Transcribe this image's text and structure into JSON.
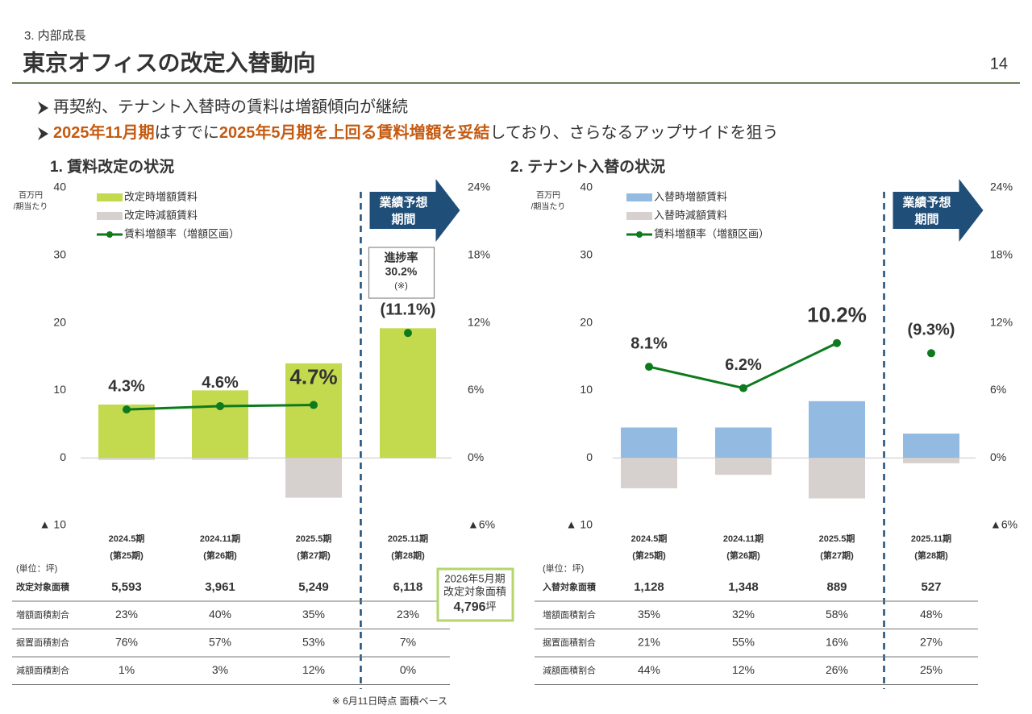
{
  "header": {
    "section": "3. 内部成長",
    "title": "東京オフィスの改定入替動向",
    "page": "14"
  },
  "bullets": [
    [
      {
        "text": "再契約、テナント入替時の賃料は増額傾向が継続",
        "em": false
      }
    ],
    [
      {
        "text": "2025年11月期",
        "em": true
      },
      {
        "text": "はすでに",
        "em": false
      },
      {
        "text": "2025年5月期を上回る賃料増額を妥結",
        "em": true
      },
      {
        "text": "しており、さらなるアップサイドを狙う",
        "em": false
      }
    ]
  ],
  "chart_data": [
    {
      "type": "bar",
      "title": "1. 賃料改定の状況",
      "y_unit_labels": [
        "百万円",
        "/期当たり"
      ],
      "categories": [
        "2024.5期",
        "2024.11期",
        "2025.5期",
        "2025.11期"
      ],
      "category_sublabels": [
        "(第25期)",
        "(第26期)",
        "(第27期)",
        "(第28期)"
      ],
      "ylim": [
        -10,
        40
      ],
      "yticks": [
        {
          "value": -10,
          "label": "▲ 10"
        },
        0,
        10,
        20,
        30,
        40
      ],
      "y2lim": [
        -6,
        24
      ],
      "y2ticks": [
        {
          "value": -6,
          "label": "▲6%"
        },
        {
          "value": 0,
          "label": "0%"
        },
        {
          "value": 6,
          "label": "6%"
        },
        {
          "value": 12,
          "label": "12%"
        },
        {
          "value": 18,
          "label": "18%"
        },
        {
          "value": 24,
          "label": "24%"
        }
      ],
      "series": [
        {
          "name": "改定時増額賃料",
          "type": "bar",
          "color": "#c3d94e",
          "values": [
            7.9,
            10.0,
            14.0,
            19.2
          ]
        },
        {
          "name": "改定時減額賃料",
          "type": "bar",
          "color": "#d6d1ce",
          "values": [
            -0.3,
            -0.3,
            -5.9,
            null
          ]
        },
        {
          "name": "賃料増額率（増額区画）",
          "type": "line",
          "axis": "y2",
          "color": "#0e7a1e",
          "values": [
            4.3,
            4.6,
            4.7,
            11.1
          ],
          "value_labels": [
            "4.3%",
            "4.6%",
            "4.7%",
            "(11.1%)"
          ],
          "value_label_colors": [
            "#595959",
            "#595959",
            "#c55a11",
            "#1f4e79"
          ]
        }
      ],
      "forecast_index": 3,
      "forecast_label": [
        "業績予想",
        "期間"
      ],
      "progress_note": [
        "進捗率",
        "30.2%",
        "(※)"
      ]
    },
    {
      "type": "bar",
      "title": "2. テナント入替の状況",
      "y_unit_labels": [
        "百万円",
        "/期当たり"
      ],
      "categories": [
        "2024.5期",
        "2024.11期",
        "2025.5期",
        "2025.11期"
      ],
      "category_sublabels": [
        "(第25期)",
        "(第26期)",
        "(第27期)",
        "(第28期)"
      ],
      "ylim": [
        -10,
        40
      ],
      "yticks": [
        {
          "value": -10,
          "label": "▲ 10"
        },
        0,
        10,
        20,
        30,
        40
      ],
      "y2lim": [
        -6,
        24
      ],
      "y2ticks": [
        {
          "value": -6,
          "label": "▲6%"
        },
        {
          "value": 0,
          "label": "0%"
        },
        {
          "value": 6,
          "label": "6%"
        },
        {
          "value": 12,
          "label": "12%"
        },
        {
          "value": 18,
          "label": "18%"
        },
        {
          "value": 24,
          "label": "24%"
        }
      ],
      "series": [
        {
          "name": "入替時増額賃料",
          "type": "bar",
          "color": "#93bbe2",
          "values": [
            4.5,
            4.5,
            8.4,
            3.6
          ]
        },
        {
          "name": "入替時減額賃料",
          "type": "bar",
          "color": "#d6d1ce",
          "values": [
            -4.5,
            -2.5,
            -6.0,
            -0.8
          ]
        },
        {
          "name": "賃料増額率（増額区画）",
          "type": "line",
          "axis": "y2",
          "color": "#0e7a1e",
          "values": [
            8.1,
            6.2,
            10.2,
            9.3
          ],
          "value_labels": [
            "8.1%",
            "6.2%",
            "10.2%",
            "(9.3%)"
          ],
          "value_label_colors": [
            "#595959",
            "#595959",
            "#c55a11",
            "#1f4e79"
          ]
        }
      ],
      "forecast_index": 3,
      "forecast_label": [
        "業績予想",
        "期間"
      ]
    }
  ],
  "tables": [
    {
      "unit": "(単位：坪)",
      "rows": [
        {
          "label": "改定対象面積",
          "values": [
            "5,593",
            "3,961",
            "5,249",
            "6,118"
          ]
        },
        {
          "label": "増額面積割合",
          "values": [
            "23%",
            "40%",
            "35%",
            "23%"
          ]
        },
        {
          "label": "据置面積割合",
          "values": [
            "76%",
            "57%",
            "53%",
            "7%"
          ]
        },
        {
          "label": "減額面積割合",
          "values": [
            "1%",
            "3%",
            "12%",
            "0%"
          ]
        }
      ]
    },
    {
      "unit": "(単位：坪)",
      "rows": [
        {
          "label": "入替対象面積",
          "values": [
            "1,128",
            "1,348",
            "889",
            "527"
          ]
        },
        {
          "label": "増額面積割合",
          "values": [
            "35%",
            "32%",
            "58%",
            "48%"
          ]
        },
        {
          "label": "据置面積割合",
          "values": [
            "21%",
            "55%",
            "16%",
            "27%"
          ]
        },
        {
          "label": "減額面積割合",
          "values": [
            "44%",
            "12%",
            "26%",
            "25%"
          ]
        }
      ]
    }
  ],
  "callout": {
    "lines": [
      "2026年5月期",
      "改定対象面積"
    ],
    "value": "4,796",
    "unit": "坪"
  },
  "footnote": "※ 6月11日時点 面積ベース"
}
